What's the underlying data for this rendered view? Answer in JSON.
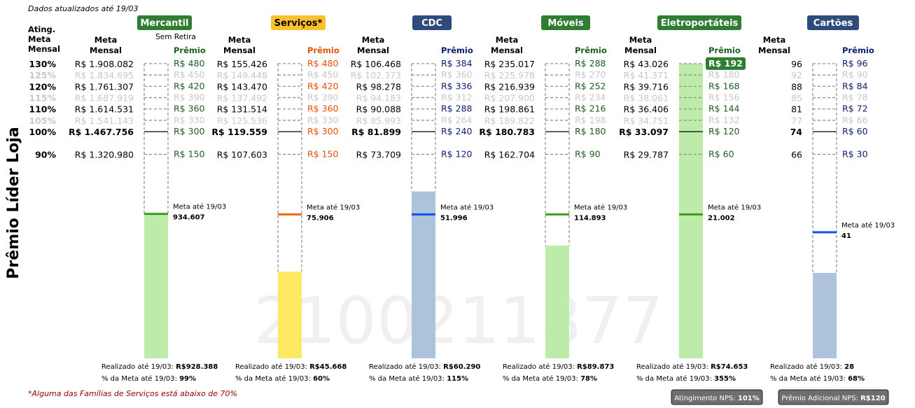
{
  "header": {
    "updated": "Dados atualizados até 19/03",
    "ylabel": "Prêmio Líder Loja",
    "watermark": "2100211877",
    "footnote": "*Alguma das Famílias de Serviços está abaixo de 70%"
  },
  "labels": {
    "ating_col": [
      "Ating.",
      "Meta",
      "Mensal"
    ],
    "meta_col": [
      "Meta",
      "Mensal"
    ],
    "premio_col": "Prêmio",
    "meta_ate": "Meta até 19/03",
    "realizado_prefix": "Realizado até 19/03: ",
    "pct_prefix": "% da Meta até 19/03: "
  },
  "atingimento": [
    {
      "label": "130%",
      "level": 130,
      "dim": false
    },
    {
      "label": "125%",
      "level": 125,
      "dim": true
    },
    {
      "label": "120%",
      "level": 120,
      "dim": false
    },
    {
      "label": "115%",
      "level": 115,
      "dim": true
    },
    {
      "label": "110%",
      "level": 110,
      "dim": false
    },
    {
      "label": "105%",
      "level": 105,
      "dim": true
    },
    {
      "label": "100%",
      "level": 100,
      "dim": false,
      "bold": true
    },
    {
      "label": "90%",
      "level": 90,
      "dim": false
    }
  ],
  "badges": {
    "nps": {
      "prefix": "Atingimento NPS: ",
      "value": "101%"
    },
    "premio_nps": {
      "prefix": "Prêmio Adicional NPS: ",
      "value": "R$120"
    }
  },
  "colors": {
    "green_badge": "#2e7d32",
    "yellow_badge": "#fbc02d",
    "navy_badge": "#2f4a7c",
    "green_fill": "#bdecaa",
    "yellow_fill": "#ffe864",
    "blue_fill": "#adc3db",
    "orange_line": "#f4650f",
    "green_line": "#3c9c1c",
    "blue_line": "#1450f0"
  },
  "chart_data": {
    "type": "bar",
    "title": "",
    "ylabel": "Prêmio Líder Loja",
    "levels": [
      130,
      125,
      120,
      115,
      110,
      105,
      100,
      90
    ],
    "families": [
      {
        "name": "Mercantil",
        "note": "Sem Retira",
        "badge_color": "#2e7d32",
        "badge_text": "#ffffff",
        "fill_color": "#bdecaa",
        "line_color": "#3c9c1c",
        "premio_color": "#1b5e20",
        "metas": [
          "R$ 1.908.082",
          "R$ 1.834.695",
          "R$ 1.761.307",
          "R$ 1.687.919",
          "R$ 1.614.531",
          "R$ 1.541.143",
          "R$ 1.467.756",
          "R$ 1.320.980"
        ],
        "premios": [
          "R$ 480",
          "R$ 450",
          "R$ 420",
          "R$ 390",
          "R$ 360",
          "R$ 330",
          "R$ 300",
          "R$ 150"
        ],
        "meta_ate": "934.607",
        "meta_ate_level": 63.7,
        "realizado": "R$928.388",
        "pct": "99%",
        "fill_level": 63.3,
        "fill_top": 63.3,
        "highlight": null
      },
      {
        "name": "Serviços*",
        "note": "",
        "badge_color": "#fbc02d",
        "badge_text": "#000000",
        "fill_color": "#ffe864",
        "line_color": "#f4650f",
        "premio_color": "#e65100",
        "metas": [
          "R$ 155.426",
          "R$ 149.448",
          "R$ 143.470",
          "R$ 137.492",
          "R$ 131.514",
          "R$ 125.536",
          "R$ 119.559",
          "R$ 107.603"
        ],
        "premios": [
          "R$ 480",
          "R$ 450",
          "R$ 420",
          "R$ 390",
          "R$ 360",
          "R$ 330",
          "R$ 300",
          "R$ 150"
        ],
        "meta_ate": "75.906",
        "meta_ate_level": 63.5,
        "realizado": "R$45.668",
        "pct": "60%",
        "fill_top": 38.2,
        "highlight": null
      },
      {
        "name": "CDC",
        "note": "",
        "badge_color": "#2f4a7c",
        "badge_text": "#ffffff",
        "fill_color": "#adc3db",
        "line_color": "#1450f0",
        "premio_color": "#0d1b6e",
        "metas": [
          "R$ 106.468",
          "R$ 102.373",
          "R$ 98.278",
          "R$ 94.183",
          "R$ 90.088",
          "R$ 85.993",
          "R$ 81.899",
          "R$ 73.709"
        ],
        "premios": [
          "R$ 384",
          "R$ 360",
          "R$ 336",
          "R$ 312",
          "R$ 288",
          "R$ 264",
          "R$ 240",
          "R$ 120"
        ],
        "meta_ate": "51.996",
        "meta_ate_level": 63.5,
        "realizado": "R$60.290",
        "pct": "115%",
        "fill_top": 73.6,
        "highlight": null
      },
      {
        "name": "Móveis",
        "note": "",
        "badge_color": "#2e7d32",
        "badge_text": "#ffffff",
        "fill_color": "#bdecaa",
        "line_color": "#3c9c1c",
        "premio_color": "#1b5e20",
        "metas": [
          "R$ 235.017",
          "R$ 225.978",
          "R$ 216.939",
          "R$ 207.900",
          "R$ 198.861",
          "R$ 189.822",
          "R$ 180.783",
          "R$ 162.704"
        ],
        "premios": [
          "R$ 288",
          "R$ 270",
          "R$ 252",
          "R$ 234",
          "R$ 216",
          "R$ 198",
          "R$ 180",
          "R$ 90"
        ],
        "meta_ate": "114.893",
        "meta_ate_level": 63.5,
        "realizado": "R$89.873",
        "pct": "78%",
        "fill_top": 49.7,
        "highlight": null
      },
      {
        "name": "Eletroportáteis",
        "note": "",
        "badge_color": "#2e7d32",
        "badge_text": "#ffffff",
        "fill_color": "#bdecaa",
        "line_color": "#3c9c1c",
        "premio_color": "#1b5e20",
        "metas": [
          "R$ 43.026",
          "R$ 41.371",
          "R$ 39.716",
          "R$ 38.061",
          "R$ 36.406",
          "R$ 34.751",
          "R$ 33.097",
          "R$ 29.787"
        ],
        "premios": [
          "R$ 192",
          "R$ 180",
          "R$ 168",
          "R$ 156",
          "R$ 144",
          "R$ 132",
          "R$ 120",
          "R$ 60"
        ],
        "meta_ate": "21.002",
        "meta_ate_level": 63.5,
        "realizado": "R$74.653",
        "pct": "355%",
        "fill_top": 130,
        "highlight": 0
      },
      {
        "name": "Cartões",
        "note": "",
        "badge_color": "#2f4a7c",
        "badge_text": "#ffffff",
        "fill_color": "#adc3db",
        "line_color": "#1450f0",
        "premio_color": "#0d1b6e",
        "metas": [
          "96",
          "92",
          "88",
          "85",
          "81",
          "77",
          "74",
          "66"
        ],
        "premios": [
          "R$ 96",
          "R$ 90",
          "R$ 84",
          "R$ 78",
          "R$ 72",
          "R$ 66",
          "R$ 60",
          "R$ 30"
        ],
        "meta_ate": "41",
        "meta_ate_level": 55.6,
        "realizado": "28",
        "pct": "68%",
        "fill_top": 37.7,
        "highlight": null
      }
    ]
  }
}
